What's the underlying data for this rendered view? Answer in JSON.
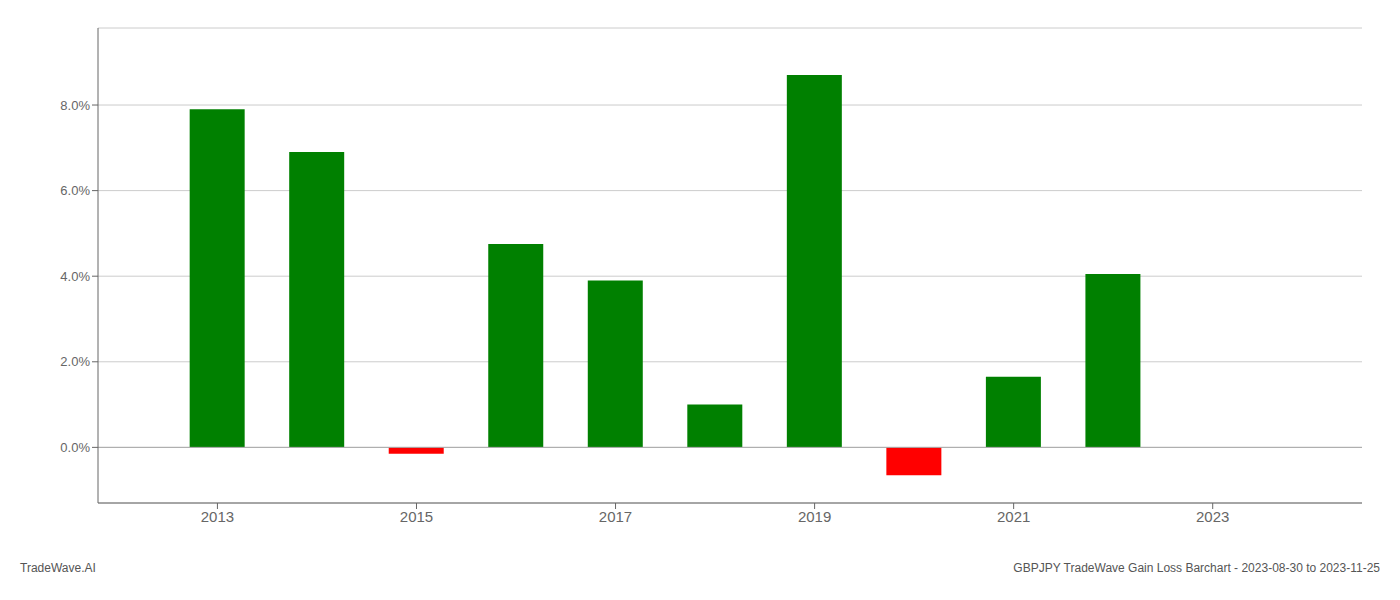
{
  "chart_data": {
    "type": "bar",
    "x": [
      2013,
      2014,
      2015,
      2016,
      2017,
      2018,
      2019,
      2020,
      2021,
      2022
    ],
    "values": [
      0.079,
      0.069,
      -0.0015,
      0.0475,
      0.039,
      0.01,
      0.087,
      -0.0065,
      0.0165,
      0.0405
    ],
    "colors": [
      "#008000",
      "#008000",
      "#ff0000",
      "#008000",
      "#008000",
      "#008000",
      "#008000",
      "#ff0000",
      "#008000",
      "#008000"
    ],
    "xlim": [
      2011.8,
      2024.5
    ],
    "xticks": [
      2013,
      2015,
      2017,
      2019,
      2021,
      2023
    ],
    "ylim": [
      -0.013,
      0.098
    ],
    "yticks": [
      {
        "value": 0.0,
        "label": "0.0%"
      },
      {
        "value": 0.02,
        "label": "2.0%"
      },
      {
        "value": 0.04,
        "label": "4.0%"
      },
      {
        "value": 0.06,
        "label": "6.0%"
      },
      {
        "value": 0.08,
        "label": "8.0%"
      }
    ],
    "grid": true,
    "annotations": [
      "TradeWave.AI",
      "GBPJPY TradeWave Gain Loss Barchart - 2023-08-30 to 2023-11-25"
    ]
  }
}
